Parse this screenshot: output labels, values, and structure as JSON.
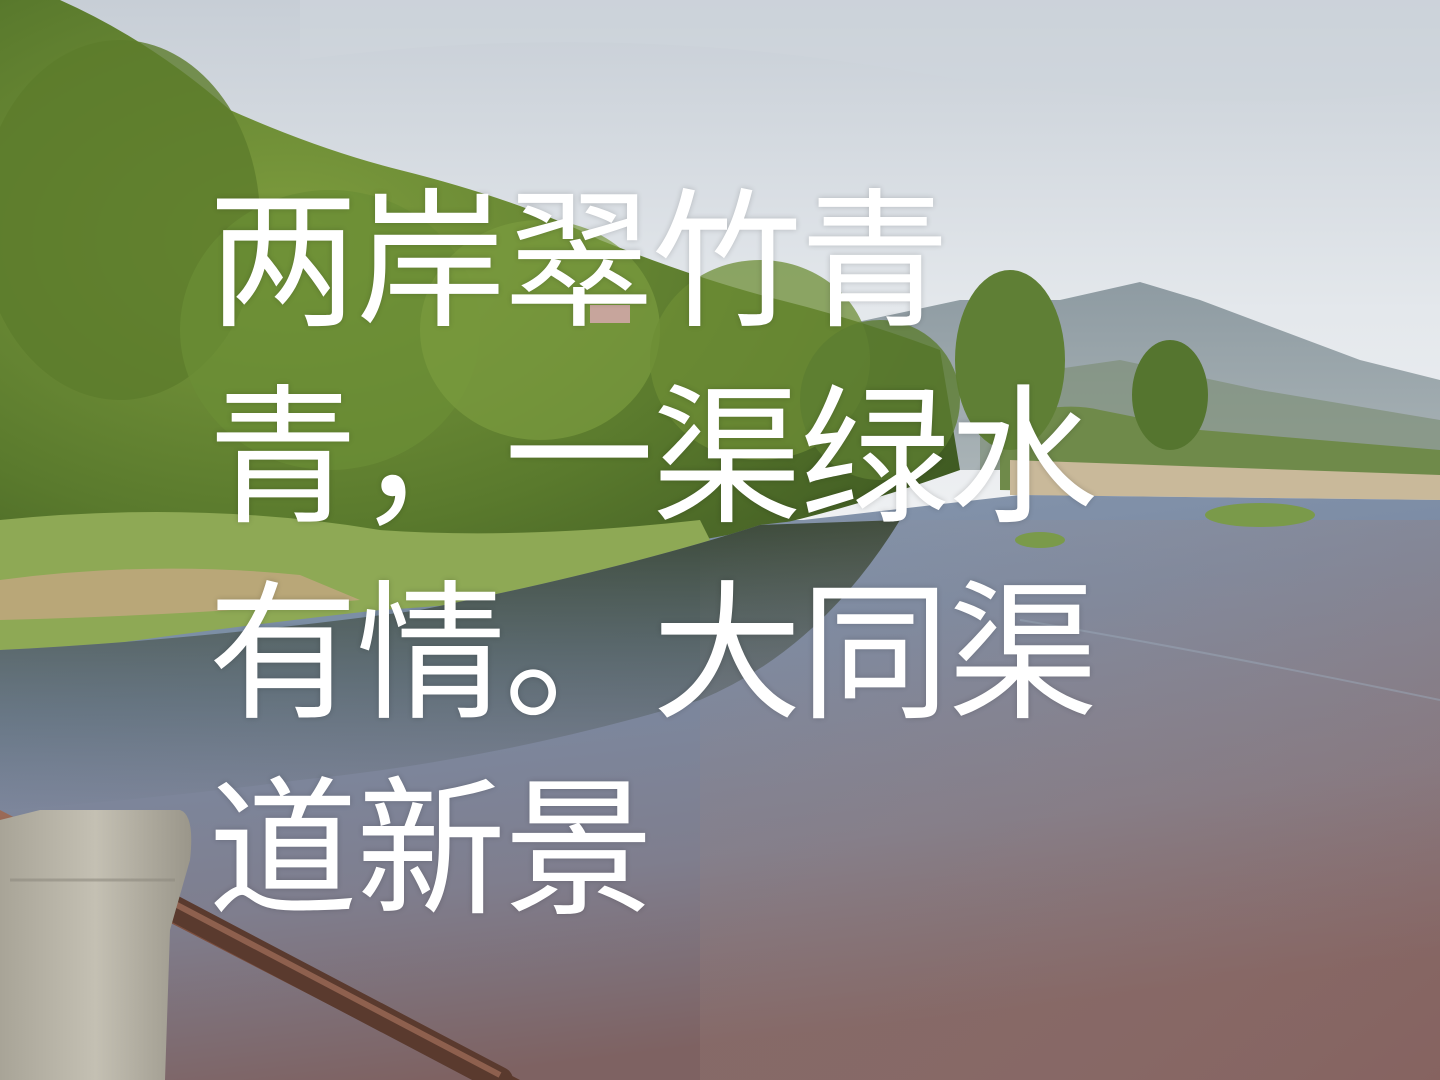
{
  "caption": {
    "text": "两岸翠竹青青，一渠绿水有情。大同渠道新景"
  },
  "scene": {
    "subject": "river-landscape-with-bamboo-banks-and-mountains",
    "colors": {
      "sky_top": "#c9d1d9",
      "sky_bottom": "#e8ecef",
      "foliage_dark": "#4d6a2a",
      "foliage_light": "#8fae4c",
      "water_top": "#8293a9",
      "water_bottom": "#7d6666",
      "mountain": "#8c9aa3",
      "railing": "#7a5545",
      "concrete": "#b9b4a8"
    }
  }
}
